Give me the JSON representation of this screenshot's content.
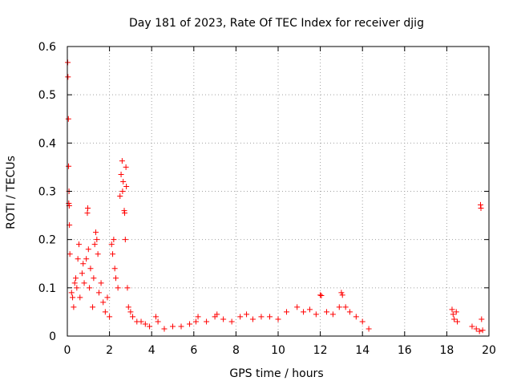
{
  "chart_data": {
    "type": "scatter",
    "title": "Day 181 of 2023, Rate Of TEC Index for receiver djig",
    "xlabel": "GPS time / hours",
    "ylabel": "ROTI / TECUs",
    "xlim": [
      0,
      20
    ],
    "ylim": [
      0,
      0.6
    ],
    "xticks": [
      0,
      2,
      4,
      6,
      8,
      10,
      12,
      14,
      16,
      18,
      20
    ],
    "yticks": [
      0,
      0.1,
      0.2,
      0.3,
      0.4,
      0.5,
      0.6
    ],
    "xtick_labels": [
      "0",
      "2",
      "4",
      "6",
      "8",
      "10",
      "12",
      "14",
      "16",
      "18",
      "20"
    ],
    "ytick_labels": [
      "0",
      "0.1",
      "0.2",
      "0.3",
      "0.4",
      "0.5",
      "0.6"
    ],
    "grid": true,
    "marker": "+",
    "marker_color": "#ff0000",
    "series": [
      {
        "name": "",
        "points": [
          [
            0.02,
            0.567
          ],
          [
            0.03,
            0.537
          ],
          [
            0.05,
            0.45
          ],
          [
            0.06,
            0.352
          ],
          [
            0.08,
            0.3
          ],
          [
            0.07,
            0.275
          ],
          [
            0.09,
            0.27
          ],
          [
            0.1,
            0.23
          ],
          [
            0.12,
            0.17
          ],
          [
            0.2,
            0.09
          ],
          [
            0.25,
            0.08
          ],
          [
            0.3,
            0.06
          ],
          [
            0.35,
            0.11
          ],
          [
            0.4,
            0.12
          ],
          [
            0.45,
            0.1
          ],
          [
            0.5,
            0.16
          ],
          [
            0.55,
            0.19
          ],
          [
            0.6,
            0.08
          ],
          [
            0.7,
            0.13
          ],
          [
            0.75,
            0.15
          ],
          [
            0.8,
            0.11
          ],
          [
            0.9,
            0.16
          ],
          [
            0.95,
            0.255
          ],
          [
            0.97,
            0.265
          ],
          [
            1.0,
            0.18
          ],
          [
            1.05,
            0.1
          ],
          [
            1.1,
            0.14
          ],
          [
            1.2,
            0.06
          ],
          [
            1.25,
            0.12
          ],
          [
            1.3,
            0.19
          ],
          [
            1.35,
            0.215
          ],
          [
            1.4,
            0.2
          ],
          [
            1.45,
            0.17
          ],
          [
            1.5,
            0.09
          ],
          [
            1.6,
            0.11
          ],
          [
            1.7,
            0.07
          ],
          [
            1.8,
            0.05
          ],
          [
            1.9,
            0.08
          ],
          [
            2.0,
            0.04
          ],
          [
            2.1,
            0.19
          ],
          [
            2.15,
            0.17
          ],
          [
            2.2,
            0.2
          ],
          [
            2.25,
            0.14
          ],
          [
            2.3,
            0.12
          ],
          [
            2.4,
            0.1
          ],
          [
            2.5,
            0.29
          ],
          [
            2.55,
            0.335
          ],
          [
            2.6,
            0.363
          ],
          [
            2.62,
            0.3
          ],
          [
            2.65,
            0.32
          ],
          [
            2.7,
            0.26
          ],
          [
            2.72,
            0.255
          ],
          [
            2.75,
            0.2
          ],
          [
            2.78,
            0.35
          ],
          [
            2.8,
            0.31
          ],
          [
            2.85,
            0.1
          ],
          [
            2.9,
            0.06
          ],
          [
            3.0,
            0.05
          ],
          [
            3.1,
            0.04
          ],
          [
            3.3,
            0.03
          ],
          [
            3.5,
            0.03
          ],
          [
            3.7,
            0.025
          ],
          [
            3.9,
            0.02
          ],
          [
            4.2,
            0.04
          ],
          [
            4.3,
            0.03
          ],
          [
            4.6,
            0.015
          ],
          [
            5.0,
            0.02
          ],
          [
            5.4,
            0.02
          ],
          [
            5.8,
            0.025
          ],
          [
            6.1,
            0.03
          ],
          [
            6.2,
            0.04
          ],
          [
            6.6,
            0.03
          ],
          [
            7.0,
            0.04
          ],
          [
            7.1,
            0.045
          ],
          [
            7.4,
            0.035
          ],
          [
            7.8,
            0.03
          ],
          [
            8.2,
            0.04
          ],
          [
            8.5,
            0.045
          ],
          [
            8.8,
            0.035
          ],
          [
            9.2,
            0.04
          ],
          [
            9.6,
            0.04
          ],
          [
            10.0,
            0.035
          ],
          [
            10.4,
            0.05
          ],
          [
            10.9,
            0.06
          ],
          [
            11.2,
            0.05
          ],
          [
            11.5,
            0.055
          ],
          [
            11.8,
            0.045
          ],
          [
            12.0,
            0.085
          ],
          [
            12.05,
            0.084
          ],
          [
            12.3,
            0.05
          ],
          [
            12.6,
            0.045
          ],
          [
            12.9,
            0.06
          ],
          [
            13.0,
            0.09
          ],
          [
            13.05,
            0.085
          ],
          [
            13.2,
            0.06
          ],
          [
            13.4,
            0.05
          ],
          [
            13.7,
            0.04
          ],
          [
            14.0,
            0.03
          ],
          [
            14.3,
            0.015
          ],
          [
            18.25,
            0.055
          ],
          [
            18.3,
            0.045
          ],
          [
            18.35,
            0.035
          ],
          [
            18.45,
            0.05
          ],
          [
            18.5,
            0.03
          ],
          [
            19.2,
            0.02
          ],
          [
            19.4,
            0.015
          ],
          [
            19.55,
            0.01
          ],
          [
            19.6,
            0.272
          ],
          [
            19.62,
            0.265
          ],
          [
            19.65,
            0.035
          ],
          [
            19.7,
            0.012
          ]
        ]
      }
    ]
  }
}
